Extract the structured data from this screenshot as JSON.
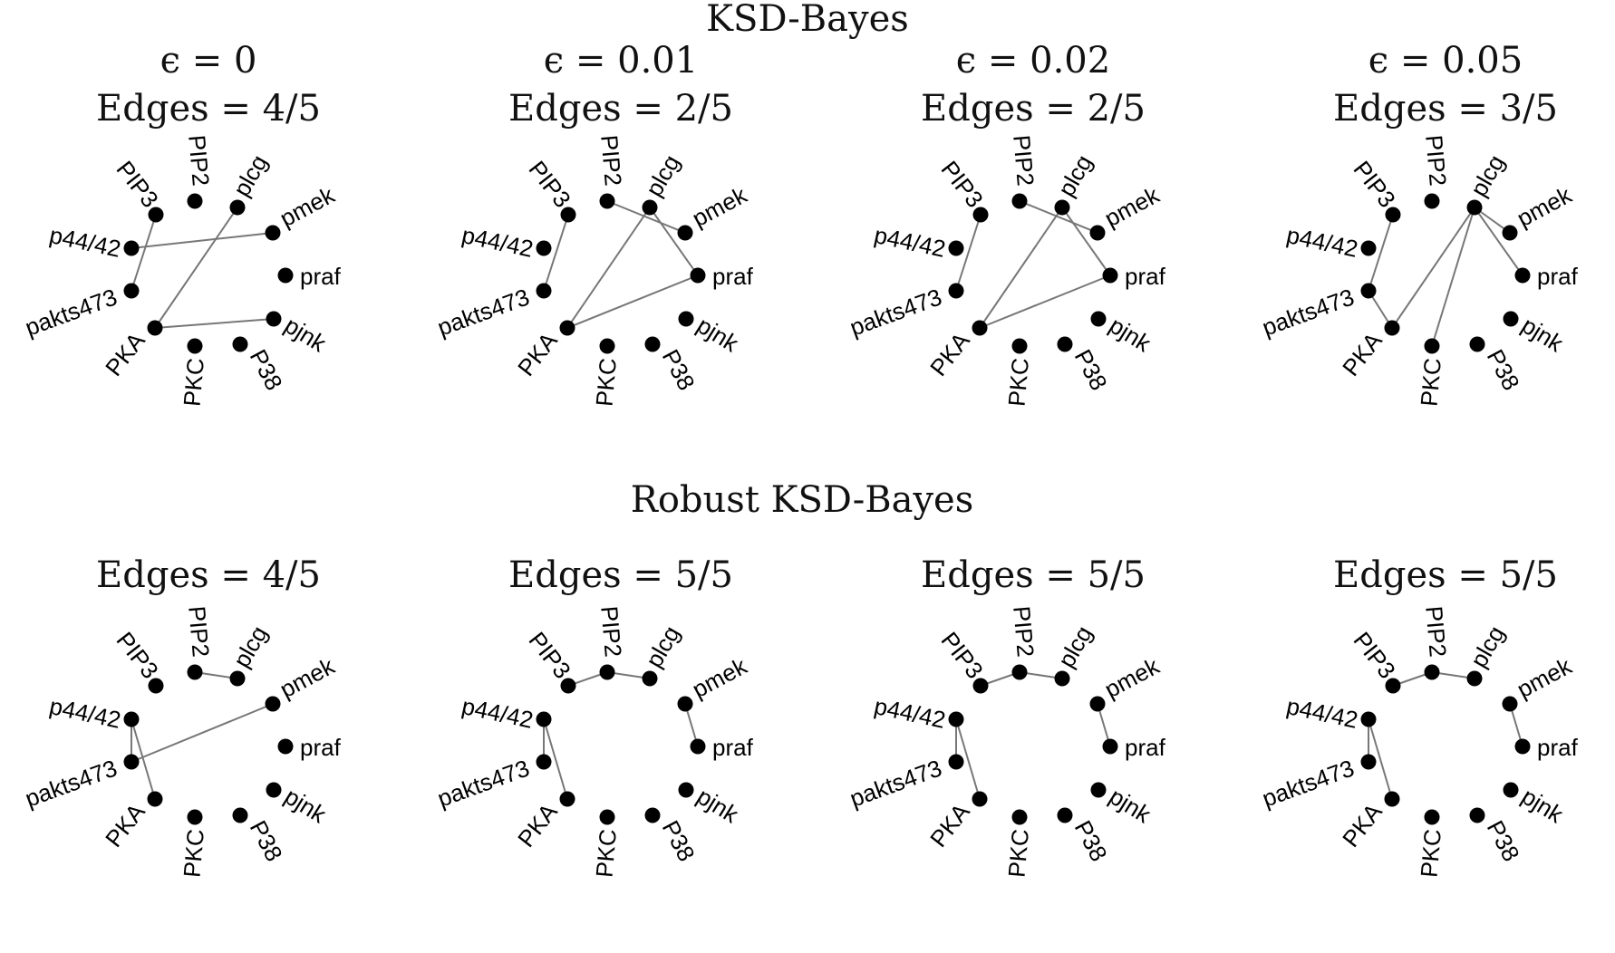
{
  "figure": {
    "rows": [
      {
        "title": "KSD-Bayes",
        "panels": [
          {
            "epsilon": "ϵ = 0",
            "edges_label": "Edges = 4/5",
            "edges": [
              [
                "PIP3",
                "pakts473"
              ],
              [
                "p44/42",
                "pmek"
              ],
              [
                "plcg",
                "PKA"
              ],
              [
                "PKA",
                "pjnk"
              ]
            ]
          },
          {
            "epsilon": "ϵ = 0.01",
            "edges_label": "Edges = 2/5",
            "edges": [
              [
                "PIP3",
                "pakts473"
              ],
              [
                "PIP2",
                "pmek"
              ],
              [
                "plcg",
                "praf"
              ],
              [
                "plcg",
                "PKA"
              ],
              [
                "PKA",
                "praf"
              ]
            ]
          },
          {
            "epsilon": "ϵ = 0.02",
            "edges_label": "Edges = 2/5",
            "edges": [
              [
                "PIP3",
                "pakts473"
              ],
              [
                "PIP2",
                "pmek"
              ],
              [
                "plcg",
                "praf"
              ],
              [
                "plcg",
                "PKA"
              ],
              [
                "PKA",
                "praf"
              ]
            ]
          },
          {
            "epsilon": "ϵ = 0.05",
            "edges_label": "Edges = 3/5",
            "edges": [
              [
                "PIP3",
                "pakts473"
              ],
              [
                "pakts473",
                "PKA"
              ],
              [
                "plcg",
                "PKA"
              ],
              [
                "plcg",
                "PKC"
              ],
              [
                "plcg",
                "pmek"
              ],
              [
                "plcg",
                "praf"
              ]
            ]
          }
        ]
      },
      {
        "title": "Robust KSD-Bayes",
        "panels": [
          {
            "epsilon": "",
            "edges_label": "Edges = 4/5",
            "edges": [
              [
                "PIP2",
                "plcg"
              ],
              [
                "p44/42",
                "pakts473"
              ],
              [
                "p44/42",
                "PKA"
              ],
              [
                "pakts473",
                "pmek"
              ]
            ]
          },
          {
            "epsilon": "",
            "edges_label": "Edges = 5/5",
            "edges": [
              [
                "PIP3",
                "PIP2"
              ],
              [
                "PIP2",
                "plcg"
              ],
              [
                "pmek",
                "praf"
              ],
              [
                "p44/42",
                "pakts473"
              ],
              [
                "p44/42",
                "PKA"
              ]
            ]
          },
          {
            "epsilon": "",
            "edges_label": "Edges = 5/5",
            "edges": [
              [
                "PIP3",
                "PIP2"
              ],
              [
                "PIP2",
                "plcg"
              ],
              [
                "pmek",
                "praf"
              ],
              [
                "p44/42",
                "pakts473"
              ],
              [
                "p44/42",
                "PKA"
              ]
            ]
          },
          {
            "epsilon": "",
            "edges_label": "Edges = 5/5",
            "edges": [
              [
                "PIP3",
                "PIP2"
              ],
              [
                "PIP2",
                "plcg"
              ],
              [
                "pmek",
                "praf"
              ],
              [
                "p44/42",
                "pakts473"
              ],
              [
                "p44/42",
                "PKA"
              ]
            ]
          }
        ]
      }
    ],
    "nodes": [
      "PIP2",
      "plcg",
      "pmek",
      "praf",
      "pjnk",
      "P38",
      "PKC",
      "PKA",
      "pakts473",
      "p44/42",
      "PIP3"
    ]
  }
}
